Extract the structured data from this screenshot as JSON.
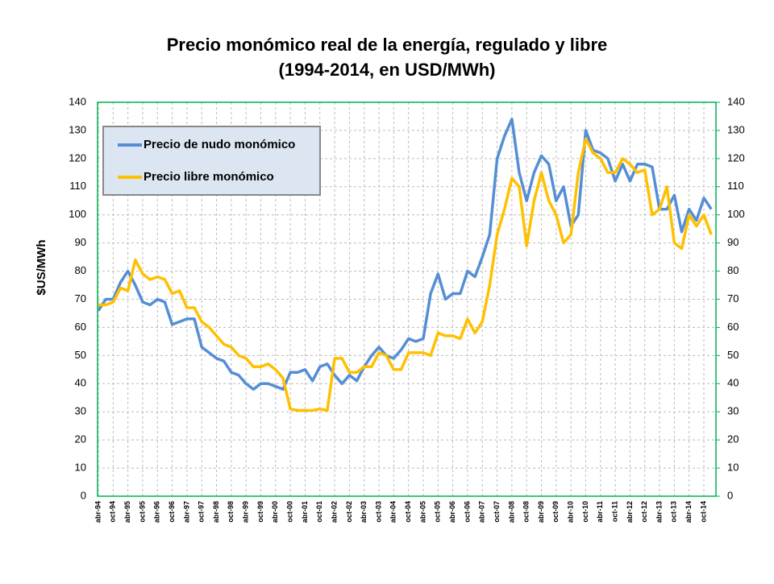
{
  "chart_data": {
    "type": "line",
    "title": [
      "Precio monómico real de la energía, regulado y libre",
      "(1994-2014, en USD/MWh)"
    ],
    "y_label": "$US/MWh",
    "categories": [
      "abr-94",
      null,
      "oct-94",
      null,
      "abr-95",
      null,
      "oct-95",
      null,
      "abr-96",
      null,
      "oct-96",
      null,
      "abr-97",
      null,
      "oct-97",
      null,
      "abr-98",
      null,
      "oct-98",
      null,
      "abr-99",
      null,
      "oct-99",
      null,
      "abr-00",
      null,
      "oct-00",
      null,
      "abr-01",
      null,
      "oct-01",
      null,
      "abr-02",
      null,
      "oct-02",
      null,
      "abr-03",
      null,
      "oct-03",
      null,
      "abr-04",
      null,
      "oct-04",
      null,
      "abr-05",
      null,
      "oct-05",
      null,
      "abr-06",
      null,
      "oct-06",
      null,
      "abr-07",
      null,
      "oct-07",
      null,
      "abr-08",
      null,
      "oct-08",
      null,
      "abr-09",
      null,
      "oct-09",
      null,
      "abr-10",
      null,
      "oct-10",
      null,
      "abr-11",
      null,
      "oct-11",
      null,
      "abr-12",
      null,
      "oct-12",
      null,
      "abr-13",
      null,
      "oct-13",
      null,
      "abr-14",
      null,
      "oct-14",
      null
    ],
    "series": [
      {
        "name": "Precio de nudo monómico",
        "color": "#558ed5",
        "values": [
          66,
          70,
          70,
          76,
          80,
          75,
          69,
          68,
          70,
          69,
          61,
          62,
          63,
          63,
          53,
          51,
          49,
          48,
          44,
          43,
          40,
          38,
          40,
          40,
          39,
          38,
          44,
          44,
          45,
          41,
          46,
          47,
          43,
          40,
          43,
          41,
          46,
          50,
          53,
          50,
          49,
          52,
          56,
          55,
          56,
          72,
          79,
          70,
          72,
          72,
          80,
          78,
          85,
          93,
          120,
          128,
          134,
          115,
          105,
          115,
          121,
          118,
          105,
          110,
          96,
          100,
          130,
          123,
          122,
          120,
          112,
          118,
          112,
          118,
          118,
          117,
          102,
          102,
          107,
          94,
          102,
          98,
          106,
          102
        ]
      },
      {
        "name": "Precio libre monómico",
        "color": "#ffc000",
        "values": [
          68,
          68,
          69,
          74,
          73,
          84,
          79,
          77,
          78,
          77,
          72,
          73,
          67,
          67,
          62,
          60,
          57,
          54,
          53,
          50,
          49,
          46,
          46,
          47,
          45,
          42,
          31,
          30.5,
          30.5,
          30.5,
          31,
          30.5,
          49,
          49,
          44,
          44,
          46,
          46,
          51,
          50,
          45,
          45,
          51,
          51,
          51,
          50,
          58,
          57,
          57,
          56,
          63,
          58,
          62,
          75,
          93,
          102,
          113,
          110,
          89,
          105,
          115,
          105,
          100,
          90,
          93,
          115,
          127,
          122,
          120,
          115,
          115,
          120,
          118,
          115,
          116,
          100,
          102,
          110,
          90,
          88,
          100,
          96,
          100,
          93
        ]
      }
    ],
    "ylim": [
      0,
      140
    ],
    "yticks": [
      0,
      10,
      20,
      30,
      40,
      50,
      60,
      70,
      80,
      90,
      100,
      110,
      120,
      130,
      140
    ],
    "y2lim": [
      0,
      140
    ],
    "y2ticks": [
      0,
      10,
      20,
      30,
      40,
      50,
      60,
      70,
      80,
      90,
      100,
      110,
      120,
      130,
      140
    ],
    "grid": true,
    "legend": "upper left"
  }
}
